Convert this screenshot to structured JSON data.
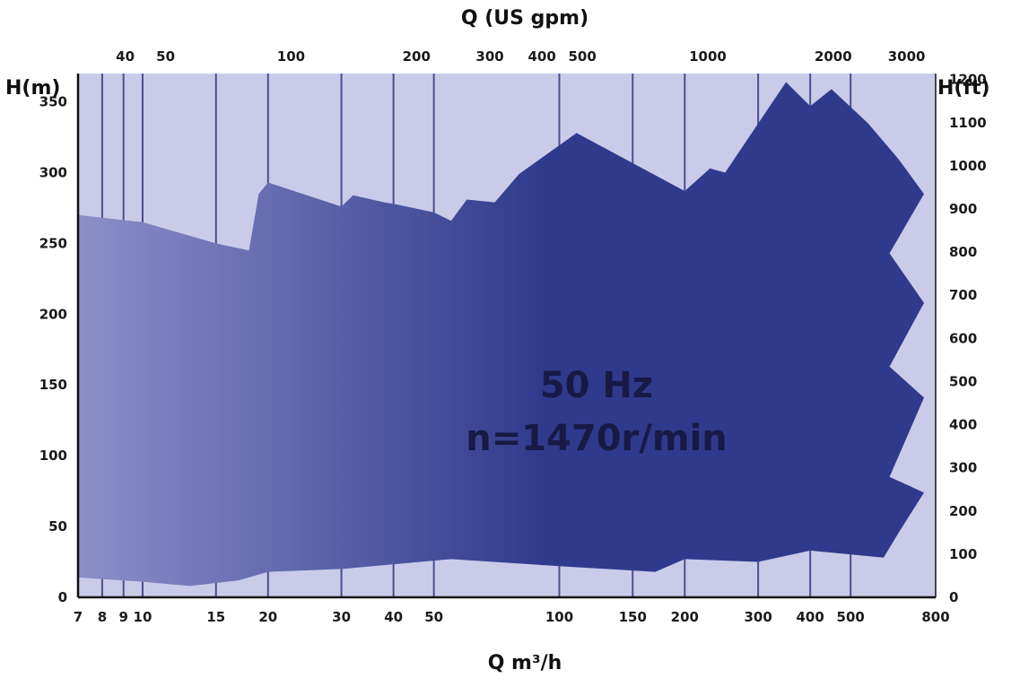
{
  "chart_data": {
    "type": "area",
    "title": "",
    "center_text": [
      "50 Hz",
      "n=1470r/min"
    ],
    "x_axis": {
      "label": "Q m³/h",
      "scale": "log",
      "range": [
        7,
        800
      ],
      "ticks": [
        7,
        8,
        9,
        10,
        15,
        20,
        30,
        40,
        50,
        100,
        150,
        200,
        300,
        400,
        500,
        800
      ],
      "gridlines": [
        7,
        8,
        9,
        10,
        15,
        20,
        30,
        40,
        50,
        100,
        150,
        200,
        300,
        400,
        500
      ]
    },
    "x2_axis": {
      "label": "Q (US gpm)",
      "scale": "log",
      "ticks": [
        40,
        50,
        100,
        200,
        300,
        400,
        500,
        1000,
        2000,
        3000
      ]
    },
    "y_axis": {
      "label": "H(m)",
      "range": [
        0,
        370
      ],
      "ticks": [
        0,
        50,
        100,
        150,
        200,
        250,
        300,
        350
      ]
    },
    "y2_axis": {
      "label": "H(ft)",
      "ticks": [
        0,
        100,
        200,
        300,
        400,
        500,
        600,
        700,
        800,
        900,
        1000,
        1100,
        1200
      ]
    },
    "grid": "vertical",
    "colors": {
      "plot_background": "#c9cbe9",
      "grid": "#4a4f8c",
      "coverage_light": "#8b90c8",
      "coverage_dark": "#2f3a8c"
    },
    "coverage_boundary": {
      "upper": [
        [
          7,
          270
        ],
        [
          10,
          265
        ],
        [
          15,
          250
        ],
        [
          18,
          245
        ],
        [
          19,
          285
        ],
        [
          20,
          293
        ],
        [
          30,
          276
        ],
        [
          32,
          284
        ],
        [
          38,
          279
        ],
        [
          40,
          278
        ],
        [
          50,
          272
        ],
        [
          55,
          266
        ],
        [
          60,
          281
        ],
        [
          70,
          279
        ],
        [
          80,
          299
        ],
        [
          110,
          328
        ],
        [
          200,
          287
        ],
        [
          230,
          303
        ],
        [
          250,
          300
        ],
        [
          350,
          364
        ],
        [
          400,
          347
        ],
        [
          450,
          359
        ],
        [
          550,
          335
        ],
        [
          650,
          310
        ],
        [
          750,
          285
        ]
      ],
      "right_edge": [
        [
          750,
          285
        ],
        [
          620,
          243
        ],
        [
          750,
          208
        ],
        [
          620,
          163
        ],
        [
          750,
          141
        ],
        [
          620,
          85
        ],
        [
          750,
          74
        ],
        [
          650,
          45
        ],
        [
          600,
          28
        ]
      ],
      "lower": [
        [
          600,
          28
        ],
        [
          400,
          33
        ],
        [
          300,
          25
        ],
        [
          200,
          27
        ],
        [
          170,
          18
        ],
        [
          100,
          22
        ],
        [
          55,
          27
        ],
        [
          30,
          20
        ],
        [
          20,
          18
        ],
        [
          17,
          12
        ],
        [
          13,
          8
        ],
        [
          10,
          11
        ],
        [
          7,
          14
        ]
      ]
    }
  }
}
